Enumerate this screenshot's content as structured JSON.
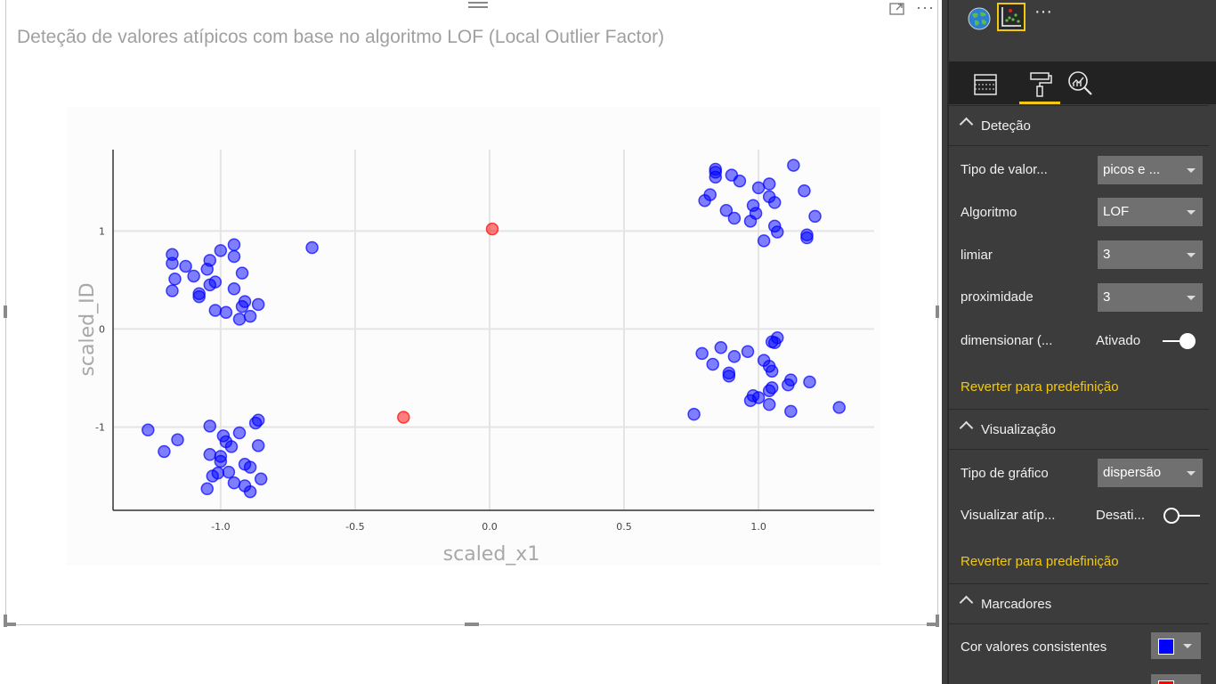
{
  "visual": {
    "title": "Deteção de valores atípicos com base no algoritmo LOF (Local Outlier Factor)"
  },
  "chart_data": {
    "type": "scatter",
    "xlabel": "scaled_x1",
    "ylabel": "scaled_ID",
    "xlim": [
      -1.4,
      1.43
    ],
    "ylim": [
      -1.85,
      1.83
    ],
    "x_ticks": [
      -1.0,
      -0.5,
      0.0,
      0.5,
      1.0
    ],
    "x_tick_labels": [
      "-1.0",
      "-0.5",
      "0.0",
      "0.5",
      "1.0"
    ],
    "y_ticks": [
      1,
      0,
      -1
    ],
    "y_tick_labels": [
      "1",
      "0",
      "-1"
    ],
    "grid": true,
    "series": [
      {
        "color": "#0000ff",
        "points": [
          [
            -1.18,
            0.76
          ],
          [
            -1.18,
            0.67
          ],
          [
            -1.17,
            0.51
          ],
          [
            -1.18,
            0.39
          ],
          [
            -1.13,
            0.64
          ],
          [
            -1.1,
            0.54
          ],
          [
            -1.08,
            0.36
          ],
          [
            -1.08,
            0.33
          ],
          [
            -1.05,
            0.61
          ],
          [
            -1.04,
            0.7
          ],
          [
            -1.04,
            0.45
          ],
          [
            -1.02,
            0.48
          ],
          [
            -1.0,
            0.8
          ],
          [
            -1.02,
            0.19
          ],
          [
            -0.98,
            0.17
          ],
          [
            -0.95,
            0.86
          ],
          [
            -0.95,
            0.74
          ],
          [
            -0.95,
            0.41
          ],
          [
            -0.93,
            0.1
          ],
          [
            -0.92,
            0.57
          ],
          [
            -0.92,
            0.23
          ],
          [
            -0.91,
            0.28
          ],
          [
            -0.89,
            0.13
          ],
          [
            -0.86,
            0.25
          ],
          [
            -0.66,
            0.83
          ],
          [
            -1.27,
            -1.03
          ],
          [
            -1.21,
            -1.25
          ],
          [
            -1.16,
            -1.13
          ],
          [
            -1.04,
            -0.99
          ],
          [
            -1.04,
            -1.28
          ],
          [
            -1.03,
            -1.5
          ],
          [
            -1.01,
            -1.47
          ],
          [
            -1.0,
            -1.3
          ],
          [
            -1.0,
            -1.35
          ],
          [
            -0.99,
            -1.09
          ],
          [
            -0.98,
            -1.15
          ],
          [
            -0.97,
            -1.46
          ],
          [
            -0.96,
            -1.2
          ],
          [
            -0.95,
            -1.57
          ],
          [
            -1.05,
            -1.63
          ],
          [
            -0.93,
            -1.06
          ],
          [
            -0.91,
            -1.38
          ],
          [
            -0.91,
            -1.6
          ],
          [
            -0.89,
            -1.66
          ],
          [
            -0.89,
            -1.41
          ],
          [
            -0.87,
            -0.96
          ],
          [
            -0.86,
            -0.93
          ],
          [
            -0.86,
            -1.19
          ],
          [
            -0.85,
            -1.53
          ],
          [
            0.8,
            1.31
          ],
          [
            0.82,
            1.37
          ],
          [
            0.84,
            1.55
          ],
          [
            0.84,
            1.63
          ],
          [
            0.84,
            1.6
          ],
          [
            0.88,
            1.21
          ],
          [
            0.9,
            1.57
          ],
          [
            0.91,
            1.13
          ],
          [
            0.93,
            1.51
          ],
          [
            0.97,
            1.1
          ],
          [
            0.98,
            1.26
          ],
          [
            0.99,
            1.18
          ],
          [
            1.0,
            1.44
          ],
          [
            1.02,
            0.9
          ],
          [
            1.04,
            1.48
          ],
          [
            1.04,
            1.35
          ],
          [
            1.06,
            1.29
          ],
          [
            1.06,
            1.05
          ],
          [
            1.07,
            0.99
          ],
          [
            1.13,
            1.67
          ],
          [
            1.17,
            1.41
          ],
          [
            1.18,
            0.96
          ],
          [
            1.18,
            0.93
          ],
          [
            1.21,
            1.15
          ],
          [
            0.76,
            -0.87
          ],
          [
            0.79,
            -0.25
          ],
          [
            0.83,
            -0.36
          ],
          [
            0.86,
            -0.19
          ],
          [
            0.89,
            -0.45
          ],
          [
            0.89,
            -0.48
          ],
          [
            0.91,
            -0.28
          ],
          [
            0.96,
            -0.23
          ],
          [
            0.97,
            -0.73
          ],
          [
            0.98,
            -0.68
          ],
          [
            1.0,
            -0.7
          ],
          [
            1.02,
            -0.32
          ],
          [
            1.04,
            -0.38
          ],
          [
            1.04,
            -0.63
          ],
          [
            1.05,
            -0.43
          ],
          [
            1.05,
            -0.6
          ],
          [
            1.04,
            -0.77
          ],
          [
            1.05,
            -0.13
          ],
          [
            1.06,
            -0.14
          ],
          [
            1.07,
            -0.09
          ],
          [
            1.11,
            -0.57
          ],
          [
            1.12,
            -0.52
          ],
          [
            1.12,
            -0.84
          ],
          [
            1.19,
            -0.54
          ],
          [
            1.3,
            -0.8
          ]
        ]
      },
      {
        "color": "#ff0000",
        "points": [
          [
            0.01,
            1.02
          ],
          [
            -0.32,
            -0.9
          ]
        ]
      }
    ]
  },
  "pane": {
    "visuals": [
      "globe-map-icon",
      "outlier-scatter-icon"
    ],
    "more": "···",
    "tabs": [
      "fields-icon",
      "format-paint-roller-icon",
      "analytics-icon"
    ],
    "sections": {
      "detection": {
        "title": "Deteção",
        "type_label": "Tipo de valor...",
        "type_value": "picos e ...",
        "algorithm_label": "Algoritmo",
        "algorithm_value": "LOF",
        "threshold_label": "limiar",
        "threshold_value": "3",
        "proximity_label": "proximidade",
        "proximity_value": "3",
        "scale_label": "dimensionar (...",
        "scale_state": "Ativado",
        "scale_on": true,
        "revert": "Reverter para predefinição"
      },
      "visualization": {
        "title": "Visualização",
        "chart_type_label": "Tipo de gráfico",
        "chart_type_value": "dispersão",
        "show_outliers_label": "Visualizar atíp...",
        "show_outliers_state": "Desati...",
        "show_outliers_on": false,
        "revert": "Reverter para predefinição"
      },
      "markers": {
        "title": "Marcadores",
        "consistent_color_label": "Cor valores consistentes",
        "consistent_color": "#0000ff",
        "outlier_color": "#ff0000"
      }
    }
  }
}
